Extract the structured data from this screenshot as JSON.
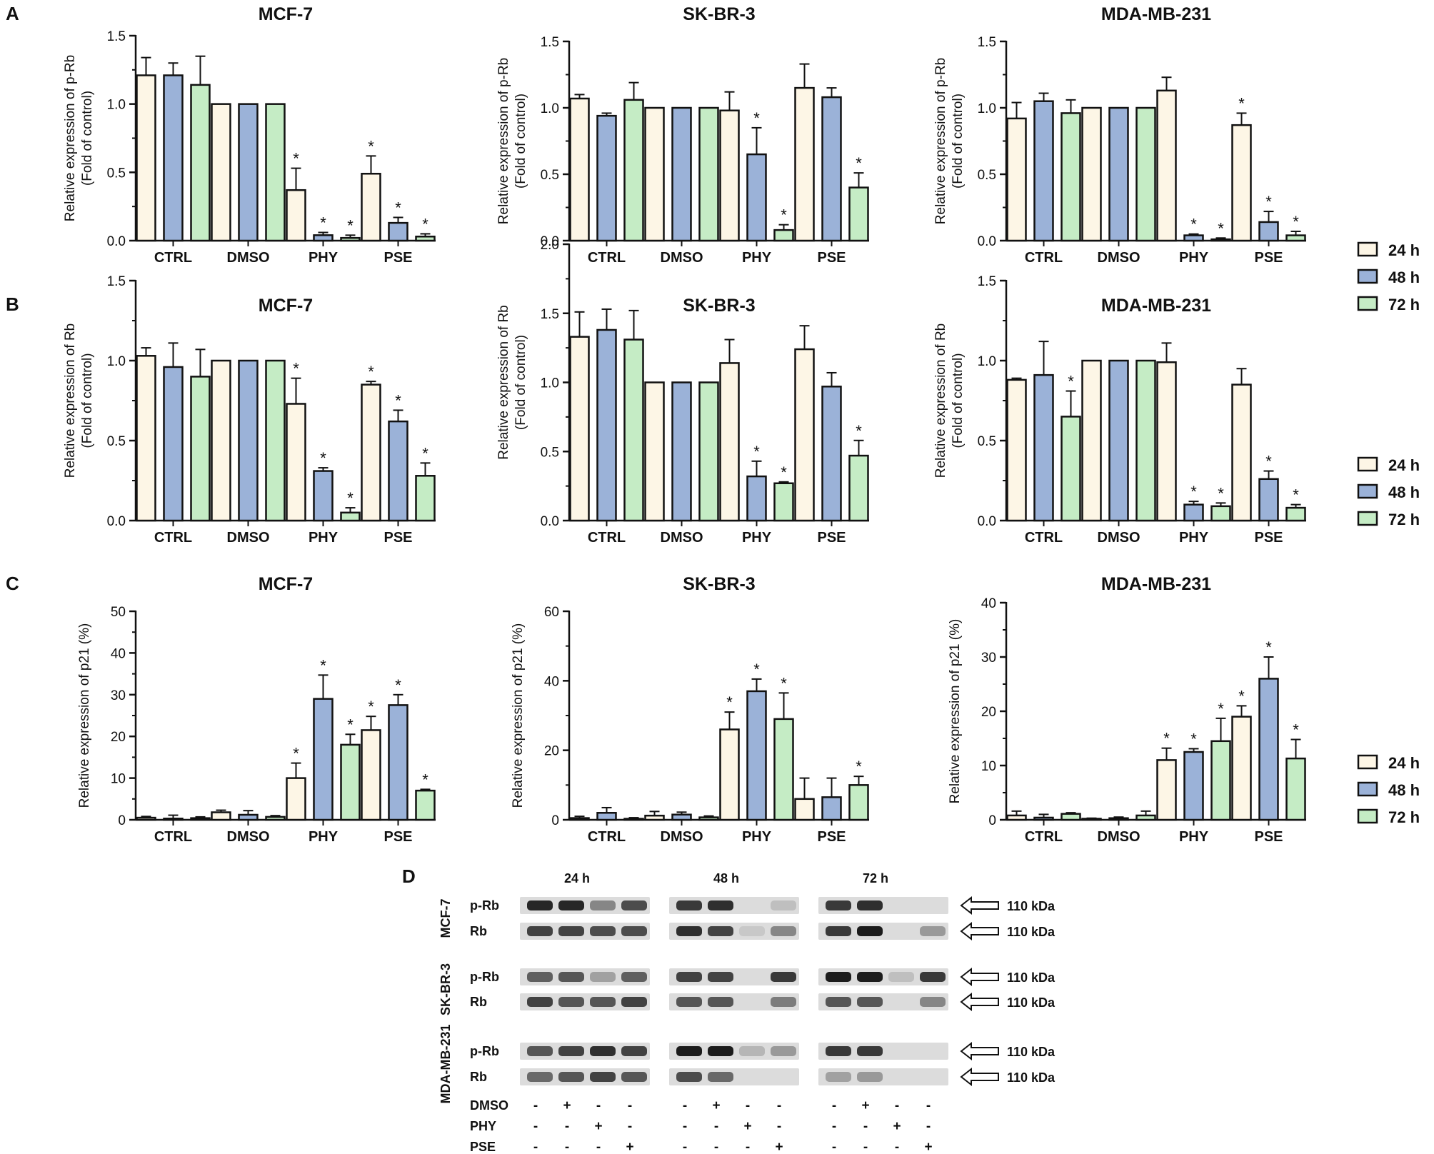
{
  "colors": {
    "h24": "#fdf6e6",
    "h48": "#9bb2d8",
    "h72": "#c5ecc5",
    "axis": "#111111",
    "band": "#1c1c1c",
    "blot_bg": "#dcdcdc"
  },
  "legend": [
    "24 h",
    "48 h",
    "72 h"
  ],
  "panels": [
    {
      "letter": "A"
    },
    {
      "letter": "B"
    },
    {
      "letter": "C"
    },
    {
      "letter": "D"
    }
  ],
  "chart_data": [
    {
      "panel": "A",
      "type": "bar",
      "title": "MCF-7",
      "ylabel": [
        "Relative expression of p-Rb",
        "(Fold of control)"
      ],
      "ylim": [
        0,
        1.5
      ],
      "yticks": [
        "0.0",
        "0.5",
        "1.0",
        "1.5"
      ],
      "categories": [
        "CTRL",
        "DMSO",
        "PHY",
        "PSE"
      ],
      "series": [
        {
          "name": "24 h",
          "values": [
            1.21,
            1.0,
            0.37,
            0.49
          ],
          "errors": [
            0.13,
            0,
            0.16,
            0.13
          ],
          "sig": [
            false,
            false,
            true,
            true
          ]
        },
        {
          "name": "48 h",
          "values": [
            1.21,
            1.0,
            0.04,
            0.13
          ],
          "errors": [
            0.09,
            0,
            0.02,
            0.04
          ],
          "sig": [
            false,
            false,
            true,
            true
          ]
        },
        {
          "name": "72 h",
          "values": [
            1.14,
            1.0,
            0.02,
            0.03
          ],
          "errors": [
            0.21,
            0,
            0.02,
            0.02
          ],
          "sig": [
            false,
            false,
            true,
            true
          ]
        }
      ]
    },
    {
      "panel": "A",
      "type": "bar",
      "title": "SK-BR-3",
      "ylabel": [
        "Relative expression of p-Rb",
        "(Fold of control)"
      ],
      "ylim": [
        0,
        1.5
      ],
      "yticks": [
        "0.0",
        "0.5",
        "1.0",
        "1.5"
      ],
      "categories": [
        "CTRL",
        "DMSO",
        "PHY",
        "PSE"
      ],
      "series": [
        {
          "name": "24 h",
          "values": [
            1.07,
            1.0,
            0.98,
            1.15
          ],
          "errors": [
            0.03,
            0,
            0.14,
            0.18
          ],
          "sig": [
            false,
            false,
            false,
            false
          ]
        },
        {
          "name": "48 h",
          "values": [
            0.94,
            1.0,
            0.65,
            1.08
          ],
          "errors": [
            0.02,
            0,
            0.2,
            0.07
          ],
          "sig": [
            false,
            false,
            true,
            false
          ]
        },
        {
          "name": "72 h",
          "values": [
            1.06,
            1.0,
            0.08,
            0.4
          ],
          "errors": [
            0.13,
            0,
            0.04,
            0.11
          ],
          "sig": [
            false,
            false,
            true,
            true
          ]
        }
      ]
    },
    {
      "panel": "A",
      "type": "bar",
      "title": "MDA-MB-231",
      "ylabel": [
        "Relative expression of p-Rb",
        "(Fold of control)"
      ],
      "ylim": [
        0,
        1.5
      ],
      "yticks": [
        "0.0",
        "0.5",
        "1.0",
        "1.5"
      ],
      "categories": [
        "CTRL",
        "DMSO",
        "PHY",
        "PSE"
      ],
      "series": [
        {
          "name": "24 h",
          "values": [
            0.92,
            1.0,
            1.13,
            0.87
          ],
          "errors": [
            0.12,
            0,
            0.1,
            0.09
          ],
          "sig": [
            false,
            false,
            false,
            true
          ]
        },
        {
          "name": "48 h",
          "values": [
            1.05,
            1.0,
            0.04,
            0.14
          ],
          "errors": [
            0.06,
            0,
            0.01,
            0.08
          ],
          "sig": [
            false,
            false,
            true,
            true
          ]
        },
        {
          "name": "72 h",
          "values": [
            0.96,
            1.0,
            0.01,
            0.04
          ],
          "errors": [
            0.1,
            0,
            0.01,
            0.03
          ],
          "sig": [
            false,
            false,
            true,
            true
          ]
        }
      ]
    },
    {
      "panel": "B",
      "type": "bar",
      "title": "MCF-7",
      "ylabel": [
        "Relative expression of Rb",
        "(Fold of control)"
      ],
      "ylim": [
        0,
        1.5
      ],
      "yticks": [
        "0.0",
        "0.5",
        "1.0",
        "1.5"
      ],
      "categories": [
        "CTRL",
        "DMSO",
        "PHY",
        "PSE"
      ],
      "series": [
        {
          "name": "24 h",
          "values": [
            1.03,
            1.0,
            0.73,
            0.85
          ],
          "errors": [
            0.05,
            0,
            0.16,
            0.02
          ],
          "sig": [
            false,
            false,
            true,
            true
          ]
        },
        {
          "name": "48 h",
          "values": [
            0.96,
            1.0,
            0.31,
            0.62
          ],
          "errors": [
            0.15,
            0,
            0.02,
            0.07
          ],
          "sig": [
            false,
            false,
            true,
            true
          ]
        },
        {
          "name": "72 h",
          "values": [
            0.9,
            1.0,
            0.05,
            0.28
          ],
          "errors": [
            0.17,
            0,
            0.03,
            0.08
          ],
          "sig": [
            false,
            false,
            true,
            true
          ]
        }
      ]
    },
    {
      "panel": "B",
      "type": "bar",
      "title": "SK-BR-3",
      "ylabel": [
        "Relative expression of Rb",
        "(Fold of control)"
      ],
      "ylim": [
        0,
        2.0
      ],
      "yticks": [
        "0.0",
        "0.5",
        "1.0",
        "1.5",
        "2.0"
      ],
      "categories": [
        "CTRL",
        "DMSO",
        "PHY",
        "PSE"
      ],
      "series": [
        {
          "name": "24 h",
          "values": [
            1.33,
            1.0,
            1.14,
            1.24
          ],
          "errors": [
            0.18,
            0,
            0.17,
            0.17
          ],
          "sig": [
            false,
            false,
            false,
            false
          ]
        },
        {
          "name": "48 h",
          "values": [
            1.38,
            1.0,
            0.32,
            0.97
          ],
          "errors": [
            0.15,
            0,
            0.11,
            0.1
          ],
          "sig": [
            false,
            false,
            true,
            false
          ]
        },
        {
          "name": "72 h",
          "values": [
            1.31,
            1.0,
            0.27,
            0.47
          ],
          "errors": [
            0.21,
            0,
            0.01,
            0.11
          ],
          "sig": [
            false,
            false,
            true,
            true
          ]
        }
      ]
    },
    {
      "panel": "B",
      "type": "bar",
      "title": "MDA-MB-231",
      "ylabel": [
        "Relative expression of Rb",
        "(Fold of control)"
      ],
      "ylim": [
        0,
        1.5
      ],
      "yticks": [
        "0.0",
        "0.5",
        "1.0",
        "1.5"
      ],
      "categories": [
        "CTRL",
        "DMSO",
        "PHY",
        "PSE"
      ],
      "series": [
        {
          "name": "24 h",
          "values": [
            0.88,
            1.0,
            0.99,
            0.85
          ],
          "errors": [
            0.01,
            0,
            0.12,
            0.1
          ],
          "sig": [
            false,
            false,
            false,
            false
          ]
        },
        {
          "name": "48 h",
          "values": [
            0.91,
            1.0,
            0.1,
            0.26
          ],
          "errors": [
            0.21,
            0,
            0.02,
            0.05
          ],
          "sig": [
            false,
            false,
            true,
            true
          ]
        },
        {
          "name": "72 h",
          "values": [
            0.65,
            1.0,
            0.09,
            0.08
          ],
          "errors": [
            0.16,
            0,
            0.02,
            0.02
          ],
          "sig": [
            true,
            false,
            true,
            true
          ]
        }
      ]
    },
    {
      "panel": "C",
      "type": "bar",
      "title": "MCF-7",
      "ylabel": [
        "Relative expression of p21 (%)"
      ],
      "ylim": [
        0,
        50
      ],
      "yticks": [
        "0",
        "10",
        "20",
        "30",
        "40",
        "50"
      ],
      "categories": [
        "CTRL",
        "DMSO",
        "PHY",
        "PSE"
      ],
      "series": [
        {
          "name": "24 h",
          "values": [
            0.5,
            1.8,
            10.0,
            21.5
          ],
          "errors": [
            0.3,
            0.5,
            3.6,
            3.3
          ],
          "sig": [
            false,
            false,
            true,
            true
          ]
        },
        {
          "name": "48 h",
          "values": [
            0.3,
            1.2,
            29.0,
            27.5
          ],
          "errors": [
            0.8,
            1.0,
            5.7,
            2.5
          ],
          "sig": [
            false,
            false,
            true,
            true
          ]
        },
        {
          "name": "72 h",
          "values": [
            0.4,
            0.7,
            18.0,
            7.0
          ],
          "errors": [
            0.3,
            0.3,
            2.5,
            0.3
          ],
          "sig": [
            false,
            false,
            true,
            true
          ]
        }
      ]
    },
    {
      "panel": "C",
      "type": "bar",
      "title": "SK-BR-3",
      "ylabel": [
        "Relative expression of p21 (%)"
      ],
      "ylim": [
        0,
        60
      ],
      "yticks": [
        "0",
        "20",
        "40",
        "60"
      ],
      "categories": [
        "CTRL",
        "DMSO",
        "PHY",
        "PSE"
      ],
      "series": [
        {
          "name": "24 h",
          "values": [
            0.5,
            1.2,
            26.0,
            6.0
          ],
          "errors": [
            0.5,
            1.2,
            5.0,
            6.0
          ],
          "sig": [
            false,
            false,
            true,
            false
          ]
        },
        {
          "name": "48 h",
          "values": [
            2.0,
            1.5,
            37.0,
            6.5
          ],
          "errors": [
            1.5,
            0.7,
            3.5,
            5.5
          ],
          "sig": [
            false,
            false,
            true,
            false
          ]
        },
        {
          "name": "72 h",
          "values": [
            0.3,
            0.7,
            29.0,
            10.0
          ],
          "errors": [
            0.3,
            0.4,
            7.5,
            2.5
          ],
          "sig": [
            false,
            false,
            true,
            true
          ]
        }
      ]
    },
    {
      "panel": "C",
      "type": "bar",
      "title": "MDA-MB-231",
      "ylabel": [
        "Relative expression of p21 (%)"
      ],
      "ylim": [
        0,
        40
      ],
      "yticks": [
        "0",
        "10",
        "20",
        "30",
        "40"
      ],
      "categories": [
        "CTRL",
        "DMSO",
        "PHY",
        "PSE"
      ],
      "series": [
        {
          "name": "24 h",
          "values": [
            0.8,
            0.2,
            11.0,
            19.0
          ],
          "errors": [
            0.8,
            0.1,
            2.2,
            2.0
          ],
          "sig": [
            false,
            false,
            true,
            true
          ]
        },
        {
          "name": "48 h",
          "values": [
            0.4,
            0.3,
            12.5,
            26.0
          ],
          "errors": [
            0.6,
            0.2,
            0.6,
            4.0
          ],
          "sig": [
            false,
            false,
            true,
            true
          ]
        },
        {
          "name": "72 h",
          "values": [
            1.1,
            0.8,
            14.5,
            11.3
          ],
          "errors": [
            0.2,
            0.8,
            4.2,
            3.5
          ],
          "sig": [
            false,
            false,
            true,
            true
          ]
        }
      ]
    }
  ],
  "western_blot": {
    "times": [
      "24 h",
      "48 h",
      "72 h"
    ],
    "cell_lines": [
      "MCF-7",
      "SK-BR-3",
      "MDA-MB-231"
    ],
    "proteins": [
      "p-Rb",
      "Rb"
    ],
    "size_label": "110 kDa",
    "treatments": [
      {
        "name": "DMSO",
        "signs": [
          "-",
          "+",
          "-",
          "-"
        ]
      },
      {
        "name": "PHY",
        "signs": [
          "-",
          "-",
          "+",
          "-"
        ]
      },
      {
        "name": "PSE",
        "signs": [
          "-",
          "-",
          "-",
          "+"
        ]
      }
    ],
    "band_intensity": [
      [
        [
          0.95,
          0.95,
          0.45,
          0.75
        ],
        [
          0.85,
          0.9,
          0.0,
          0.15
        ],
        [
          0.85,
          0.9,
          0.0,
          0.0
        ]
      ],
      [
        [
          0.8,
          0.8,
          0.75,
          0.75
        ],
        [
          0.9,
          0.8,
          0.1,
          0.45
        ],
        [
          0.85,
          1.0,
          0.0,
          0.35
        ]
      ],
      [
        [
          0.65,
          0.7,
          0.3,
          0.65
        ],
        [
          0.8,
          0.8,
          0.0,
          0.85
        ],
        [
          1.0,
          1.0,
          0.15,
          0.85
        ]
      ],
      [
        [
          0.8,
          0.7,
          0.7,
          0.8
        ],
        [
          0.7,
          0.7,
          0.0,
          0.5
        ],
        [
          0.7,
          0.7,
          0.0,
          0.45
        ]
      ],
      [
        [
          0.7,
          0.8,
          0.9,
          0.8
        ],
        [
          1.0,
          1.0,
          0.2,
          0.35
        ],
        [
          0.85,
          0.85,
          0.0,
          0.0
        ]
      ],
      [
        [
          0.6,
          0.7,
          0.8,
          0.7
        ],
        [
          0.75,
          0.6,
          0.0,
          0.0
        ],
        [
          0.3,
          0.35,
          0.0,
          0.0
        ]
      ]
    ]
  }
}
